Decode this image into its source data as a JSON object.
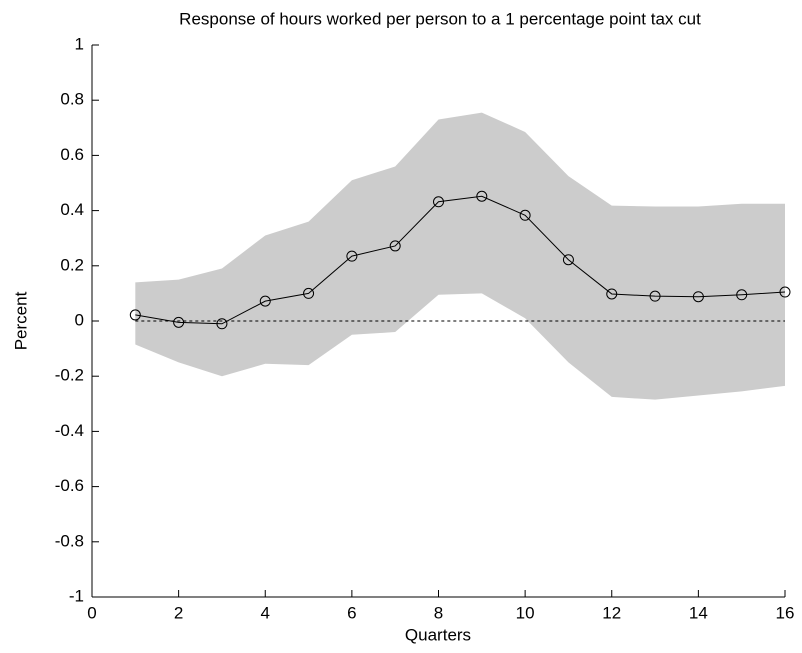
{
  "chart_data": {
    "type": "line",
    "title": "Response of hours worked per person to a 1 percentage point tax cut",
    "x_label": "Quarters",
    "y_label": "Percent",
    "x": [
      1,
      2,
      3,
      4,
      5,
      6,
      7,
      8,
      9,
      10,
      11,
      12,
      13,
      14,
      15,
      16
    ],
    "values": [
      0.022,
      -0.005,
      -0.01,
      0.072,
      0.1,
      0.235,
      0.272,
      0.432,
      0.452,
      0.383,
      0.222,
      0.098,
      0.09,
      0.088,
      0.095,
      0.105
    ],
    "color": "#000000",
    "band": {
      "upper": [
        0.14,
        0.15,
        0.19,
        0.31,
        0.36,
        0.51,
        0.56,
        0.73,
        0.755,
        0.685,
        0.525,
        0.418,
        0.415,
        0.415,
        0.425,
        0.425
      ],
      "lower": [
        -0.085,
        -0.15,
        -0.2,
        -0.155,
        -0.16,
        -0.05,
        -0.04,
        0.095,
        0.1,
        0.01,
        -0.15,
        -0.275,
        -0.285,
        -0.27,
        -0.255,
        -0.235
      ],
      "color": "#cccccc"
    },
    "reference_line": 0,
    "xlim": [
      0,
      16
    ],
    "xticks": [
      0,
      2,
      4,
      6,
      8,
      10,
      12,
      14,
      16
    ],
    "ylim": [
      -1,
      1
    ],
    "yticks": [
      -1,
      -0.8,
      -0.6,
      -0.4,
      -0.2,
      0,
      0.2,
      0.4,
      0.6,
      0.8,
      1
    ]
  }
}
